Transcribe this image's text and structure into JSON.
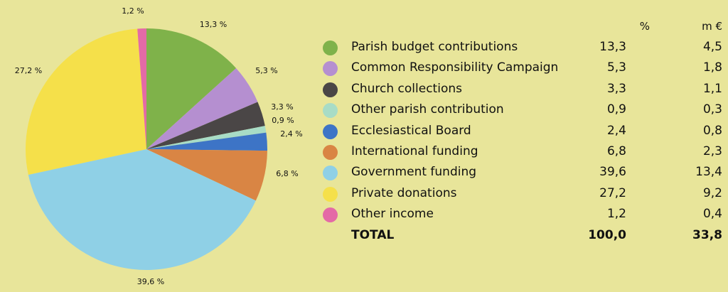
{
  "chart_data": {
    "type": "pie",
    "columns": {
      "percent": "%",
      "meur": "m €"
    },
    "slices": [
      {
        "name": "Parish budget contributions",
        "percent": 13.3,
        "label": "13,3 %",
        "pct_text": "13,3",
        "meur_text": "4,5",
        "color": "#7fb24a"
      },
      {
        "name": "Common Responsibility Campaign",
        "percent": 5.3,
        "label": "5,3 %",
        "pct_text": "5,3",
        "meur_text": "1,8",
        "color": "#b58fd0"
      },
      {
        "name": "Church collections",
        "percent": 3.3,
        "label": "3,3 %",
        "pct_text": "3,3",
        "meur_text": "1,1",
        "color": "#4a4646"
      },
      {
        "name": "Other parish contribution",
        "percent": 0.9,
        "label": "0,9 %",
        "pct_text": "0,9",
        "meur_text": "0,3",
        "color": "#a8dcc6"
      },
      {
        "name": "Ecclesiastical Board",
        "percent": 2.4,
        "label": "2,4 %",
        "pct_text": "2,4",
        "meur_text": "0,8",
        "color": "#3d74c6"
      },
      {
        "name": "International funding",
        "percent": 6.8,
        "label": "6,8 %",
        "pct_text": "6,8",
        "meur_text": "2,3",
        "color": "#d98544"
      },
      {
        "name": "Government funding",
        "percent": 39.6,
        "label": "39,6 %",
        "pct_text": "39,6",
        "meur_text": "13,4",
        "color": "#8fd0e6"
      },
      {
        "name": "Private donations",
        "percent": 27.2,
        "label": "27,2 %",
        "pct_text": "27,2",
        "meur_text": "9,2",
        "color": "#f5e04a"
      },
      {
        "name": "Other income",
        "percent": 1.2,
        "label": "1,2 %",
        "pct_text": "1,2",
        "meur_text": "0,4",
        "color": "#e46aa6"
      }
    ],
    "total": {
      "name": "TOTAL",
      "pct_text": "100,0",
      "meur_text": "33,8"
    }
  }
}
